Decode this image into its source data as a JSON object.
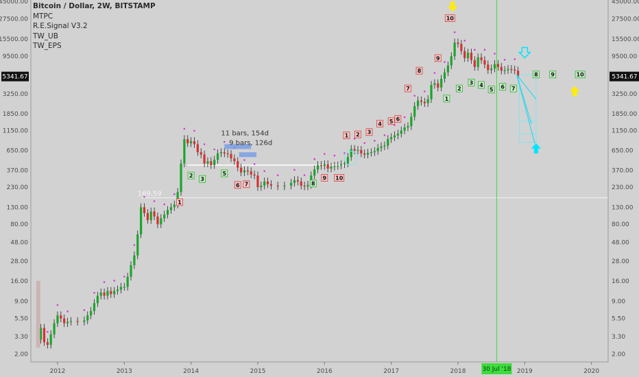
{
  "legend": {
    "title": "Bitcoin / Dollar, 2W, BITSTAMP",
    "indicators": [
      "MTPC",
      "R.E.Signal V3.2",
      "TW_UB",
      "TW_EPS"
    ]
  },
  "chart_data": {
    "type": "candlestick",
    "symbol": "Bitcoin / Dollar",
    "interval": "2W",
    "exchange": "BITSTAMP",
    "y_scale": "log",
    "ylim": [
      1.6,
      47000
    ],
    "y_ticks": [
      "2.00",
      "3.30",
      "5.50",
      "9.00",
      "16.00",
      "28.00",
      "48.00",
      "80.00",
      "130.00",
      "230.00",
      "370.00",
      "650.00",
      "1150.00",
      "1850.00",
      "3250.00",
      "5500.00",
      "9500.00",
      "15500.00",
      "27500.00",
      "45000.00"
    ],
    "x_ticks": [
      "2012",
      "2013",
      "2014",
      "2015",
      "2016",
      "2017",
      "2018",
      "2019",
      "2020"
    ],
    "xlim": [
      2011.6,
      2020.25
    ],
    "current_price": "5341.67",
    "crosshair_date": "30 Jul '18",
    "crosshair_x": 2018.58,
    "horizontal_levels": [
      {
        "price": 169.59,
        "label": "169.59"
      },
      {
        "price": 430,
        "label": ""
      }
    ],
    "annotations": [
      {
        "text": "11 bars, 154d",
        "x": 2014.45,
        "price": 1000
      },
      {
        "text": "9 bars, 126d",
        "x": 2014.57,
        "price": 760
      }
    ],
    "price_path": [
      [
        2011.7,
        3.0
      ],
      [
        2011.75,
        4.2
      ],
      [
        2011.8,
        2.8
      ],
      [
        2011.85,
        2.6
      ],
      [
        2011.9,
        3.5
      ],
      [
        2011.95,
        4.8
      ],
      [
        2012.0,
        6.0
      ],
      [
        2012.05,
        5.5
      ],
      [
        2012.1,
        4.8
      ],
      [
        2012.15,
        5.0
      ],
      [
        2012.2,
        5.1
      ],
      [
        2012.3,
        5.0
      ],
      [
        2012.4,
        5.2
      ],
      [
        2012.45,
        6.0
      ],
      [
        2012.5,
        6.8
      ],
      [
        2012.55,
        8.5
      ],
      [
        2012.6,
        10.5
      ],
      [
        2012.65,
        11.5
      ],
      [
        2012.7,
        10.5
      ],
      [
        2012.75,
        12.0
      ],
      [
        2012.8,
        11.0
      ],
      [
        2012.85,
        12.0
      ],
      [
        2012.9,
        12.5
      ],
      [
        2012.95,
        13.5
      ],
      [
        2013.0,
        13.5
      ],
      [
        2013.05,
        18
      ],
      [
        2013.1,
        25
      ],
      [
        2013.15,
        33
      ],
      [
        2013.2,
        60
      ],
      [
        2013.25,
        130
      ],
      [
        2013.3,
        110
      ],
      [
        2013.35,
        90
      ],
      [
        2013.4,
        115
      ],
      [
        2013.45,
        100
      ],
      [
        2013.5,
        80
      ],
      [
        2013.55,
        95
      ],
      [
        2013.6,
        105
      ],
      [
        2013.65,
        120
      ],
      [
        2013.7,
        130
      ],
      [
        2013.75,
        140
      ],
      [
        2013.8,
        200
      ],
      [
        2013.85,
        450
      ],
      [
        2013.9,
        900
      ],
      [
        2013.95,
        800
      ],
      [
        2014.0,
        850
      ],
      [
        2014.05,
        780
      ],
      [
        2014.1,
        620
      ],
      [
        2014.15,
        580
      ],
      [
        2014.2,
        450
      ],
      [
        2014.25,
        480
      ],
      [
        2014.3,
        430
      ],
      [
        2014.35,
        500
      ],
      [
        2014.4,
        600
      ],
      [
        2014.45,
        620
      ],
      [
        2014.5,
        600
      ],
      [
        2014.55,
        590
      ],
      [
        2014.6,
        520
      ],
      [
        2014.65,
        480
      ],
      [
        2014.7,
        400
      ],
      [
        2014.75,
        350
      ],
      [
        2014.8,
        370
      ],
      [
        2014.85,
        360
      ],
      [
        2014.9,
        330
      ],
      [
        2014.95,
        320
      ],
      [
        2015.0,
        230
      ],
      [
        2015.05,
        240
      ],
      [
        2015.1,
        270
      ],
      [
        2015.15,
        250
      ],
      [
        2015.2,
        240
      ],
      [
        2015.3,
        235
      ],
      [
        2015.4,
        240
      ],
      [
        2015.5,
        260
      ],
      [
        2015.55,
        280
      ],
      [
        2015.6,
        270
      ],
      [
        2015.65,
        240
      ],
      [
        2015.7,
        235
      ],
      [
        2015.75,
        245
      ],
      [
        2015.8,
        320
      ],
      [
        2015.85,
        380
      ],
      [
        2015.9,
        430
      ],
      [
        2015.95,
        420
      ],
      [
        2016.0,
        440
      ],
      [
        2016.05,
        390
      ],
      [
        2016.1,
        410
      ],
      [
        2016.15,
        420
      ],
      [
        2016.2,
        425
      ],
      [
        2016.25,
        440
      ],
      [
        2016.3,
        450
      ],
      [
        2016.35,
        540
      ],
      [
        2016.4,
        680
      ],
      [
        2016.45,
        650
      ],
      [
        2016.5,
        660
      ],
      [
        2016.55,
        600
      ],
      [
        2016.6,
        580
      ],
      [
        2016.65,
        610
      ],
      [
        2016.7,
        620
      ],
      [
        2016.75,
        640
      ],
      [
        2016.8,
        700
      ],
      [
        2016.85,
        730
      ],
      [
        2016.9,
        750
      ],
      [
        2016.95,
        900
      ],
      [
        2017.0,
        950
      ],
      [
        2017.05,
        1000
      ],
      [
        2017.1,
        1050
      ],
      [
        2017.15,
        1150
      ],
      [
        2017.2,
        1250
      ],
      [
        2017.25,
        1300
      ],
      [
        2017.3,
        1700
      ],
      [
        2017.35,
        2300
      ],
      [
        2017.4,
        2700
      ],
      [
        2017.45,
        2600
      ],
      [
        2017.5,
        2500
      ],
      [
        2017.55,
        2800
      ],
      [
        2017.6,
        4200
      ],
      [
        2017.65,
        4400
      ],
      [
        2017.7,
        3900
      ],
      [
        2017.75,
        5000
      ],
      [
        2017.8,
        6000
      ],
      [
        2017.85,
        7300
      ],
      [
        2017.9,
        9500
      ],
      [
        2017.95,
        14000
      ],
      [
        2018.0,
        13500
      ],
      [
        2018.05,
        11000
      ],
      [
        2018.1,
        9000
      ],
      [
        2018.15,
        10500
      ],
      [
        2018.2,
        8500
      ],
      [
        2018.25,
        7000
      ],
      [
        2018.3,
        9200
      ],
      [
        2018.35,
        8500
      ],
      [
        2018.4,
        7500
      ],
      [
        2018.45,
        6400
      ],
      [
        2018.5,
        6700
      ],
      [
        2018.55,
        7600
      ],
      [
        2018.6,
        7000
      ],
      [
        2018.65,
        6300
      ],
      [
        2018.7,
        6400
      ],
      [
        2018.75,
        6600
      ],
      [
        2018.8,
        6500
      ],
      [
        2018.85,
        6300
      ],
      [
        2018.9,
        5341.67
      ]
    ],
    "sequential_counts": [
      {
        "n": "1",
        "x": 2013.83,
        "price": 150,
        "type": "sell"
      },
      {
        "n": "2",
        "x": 2014.0,
        "price": 320,
        "type": "buy"
      },
      {
        "n": "3",
        "x": 2014.17,
        "price": 290,
        "type": "buy"
      },
      {
        "n": "5",
        "x": 2014.5,
        "price": 340,
        "type": "buy"
      },
      {
        "n": "6",
        "x": 2014.7,
        "price": 245,
        "type": "sell"
      },
      {
        "n": "7",
        "x": 2014.83,
        "price": 250,
        "type": "sell"
      },
      {
        "n": "8",
        "x": 2015.83,
        "price": 255,
        "type": "buy"
      },
      {
        "n": "9",
        "x": 2016.0,
        "price": 300,
        "type": "sell"
      },
      {
        "n": "10",
        "x": 2016.22,
        "price": 300,
        "type": "sell"
      },
      {
        "n": "1",
        "x": 2016.33,
        "price": 1000,
        "type": "sell"
      },
      {
        "n": "2",
        "x": 2016.5,
        "price": 1030,
        "type": "sell"
      },
      {
        "n": "3",
        "x": 2016.67,
        "price": 1100,
        "type": "sell"
      },
      {
        "n": "4",
        "x": 2016.83,
        "price": 1400,
        "type": "sell"
      },
      {
        "n": "5",
        "x": 2017.0,
        "price": 1500,
        "type": "sell"
      },
      {
        "n": "6",
        "x": 2017.1,
        "price": 1600,
        "type": "sell"
      },
      {
        "n": "7",
        "x": 2017.25,
        "price": 3800,
        "type": "sell"
      },
      {
        "n": "8",
        "x": 2017.42,
        "price": 6300,
        "type": "sell"
      },
      {
        "n": "9",
        "x": 2017.7,
        "price": 9000,
        "type": "sell"
      },
      {
        "n": "10",
        "x": 2017.88,
        "price": 28000,
        "type": "sell"
      },
      {
        "n": "1",
        "x": 2017.83,
        "price": 2850,
        "type": "buy"
      },
      {
        "n": "2",
        "x": 2018.02,
        "price": 3800,
        "type": "buy"
      },
      {
        "n": "3",
        "x": 2018.2,
        "price": 4500,
        "type": "buy"
      },
      {
        "n": "4",
        "x": 2018.35,
        "price": 4200,
        "type": "buy"
      },
      {
        "n": "5",
        "x": 2018.5,
        "price": 3700,
        "type": "buy"
      },
      {
        "n": "6",
        "x": 2018.67,
        "price": 4000,
        "type": "buy"
      },
      {
        "n": "7",
        "x": 2018.83,
        "price": 3800,
        "type": "buy"
      },
      {
        "n": "8",
        "x": 2019.17,
        "price": 5650,
        "type": "buy"
      },
      {
        "n": "9",
        "x": 2019.42,
        "price": 5650,
        "type": "buy"
      },
      {
        "n": "10",
        "x": 2019.83,
        "price": 5650,
        "type": "buy"
      }
    ],
    "markers": [
      {
        "type": "down-arrow",
        "color": "#ffee00",
        "x": 2017.92,
        "price": 37000
      },
      {
        "type": "up-arrow",
        "color": "#ffee00",
        "x": 2019.75,
        "price": 3700
      },
      {
        "type": "up-arrow",
        "color": "#00e5ff",
        "x": 2019.17,
        "price": 730
      },
      {
        "type": "down-arrow-outline",
        "color": "#00e5ff",
        "x": 2019.0,
        "price": 10000
      }
    ]
  }
}
